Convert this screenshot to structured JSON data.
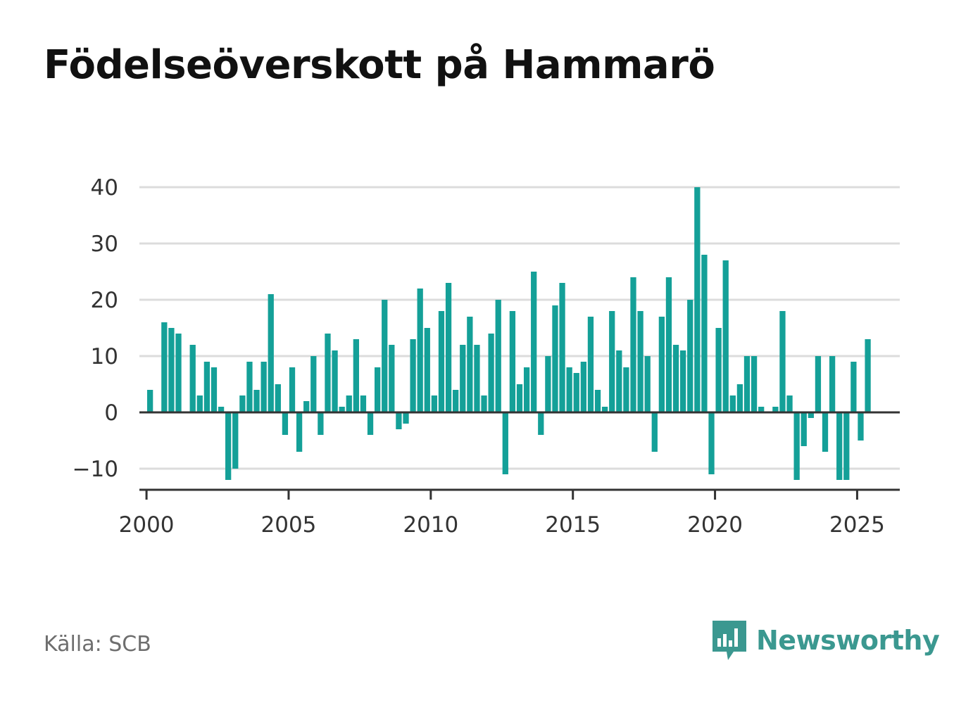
{
  "title": "Födelseöverskott på Hammarö",
  "source": "Källa: SCB",
  "brand": {
    "name": "Newsworthy",
    "icon": "newsworthy-logo-icon",
    "color": "#3b9890"
  },
  "colors": {
    "bar": "#14a098",
    "grid": "#dcdcdc",
    "axis": "#333333"
  },
  "chart_data": {
    "type": "bar",
    "title": "Födelseöverskott på Hammarö",
    "xlabel": "",
    "ylabel": "",
    "ylim": [
      -14,
      40
    ],
    "xlim": [
      1999.75,
      2026.5
    ],
    "yticks": [
      -10,
      0,
      10,
      20,
      30,
      40
    ],
    "ytick_labels": [
      "−10",
      "0",
      "10",
      "20",
      "30",
      "40"
    ],
    "xticks": [
      2000,
      2005,
      2010,
      2015,
      2020,
      2025
    ],
    "xtick_labels": [
      "2000",
      "2005",
      "2010",
      "2015",
      "2020",
      "2025"
    ],
    "grid": true,
    "legend": "none",
    "frequency": "quarterly",
    "x_start": 2000.0,
    "values": [
      4,
      0,
      16,
      15,
      14,
      0,
      12,
      3,
      9,
      8,
      1,
      -12,
      -10,
      3,
      9,
      4,
      9,
      21,
      5,
      -4,
      8,
      -7,
      2,
      10,
      -4,
      14,
      11,
      1,
      3,
      13,
      3,
      -4,
      8,
      20,
      12,
      -3,
      -2,
      13,
      22,
      15,
      3,
      18,
      23,
      4,
      12,
      17,
      12,
      3,
      14,
      20,
      -11,
      18,
      5,
      8,
      25,
      -4,
      10,
      19,
      23,
      8,
      7,
      9,
      17,
      4,
      1,
      18,
      11,
      8,
      24,
      18,
      10,
      -7,
      17,
      24,
      12,
      11,
      20,
      40,
      28,
      -11,
      15,
      27,
      3,
      5,
      10,
      10,
      1,
      0,
      1,
      18,
      3,
      -12,
      -6,
      -1,
      10,
      -7,
      10,
      -12,
      -12,
      9,
      -5,
      13
    ]
  }
}
